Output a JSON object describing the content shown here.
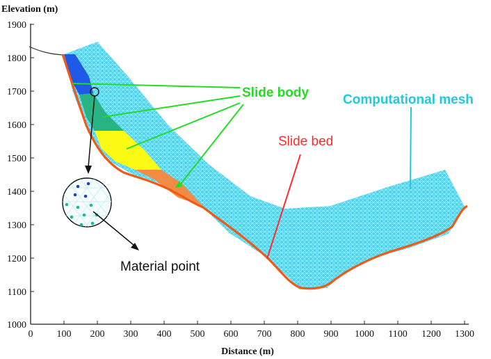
{
  "axes": {
    "y_title": "Elevation (m)",
    "x_title": "Distance (m)",
    "y_ticks": [
      "1900",
      "1800",
      "1700",
      "1600",
      "1500",
      "1400",
      "1300",
      "1200",
      "1100",
      "1000"
    ],
    "x_ticks": [
      "0",
      "100",
      "200",
      "300",
      "400",
      "500",
      "600",
      "700",
      "800",
      "900",
      "1000",
      "1100",
      "1200",
      "1300"
    ]
  },
  "labels": {
    "slide_body": "Slide body",
    "computational_mesh": "Computational mesh",
    "slide_bed": "Slide bed",
    "material_point": "Material point"
  },
  "colors": {
    "mesh": "#4ad2ee",
    "mesh_line": "#9bf0ff",
    "slide_bed": "#f05a14",
    "zone_blue": "#1e5ae6",
    "zone_green": "#28b482",
    "zone_yellow": "#fafa14",
    "zone_orange": "#f08c46",
    "label_green": "#22dd22",
    "label_cyan": "#22c8dd",
    "label_red": "#ff2a2a"
  }
}
